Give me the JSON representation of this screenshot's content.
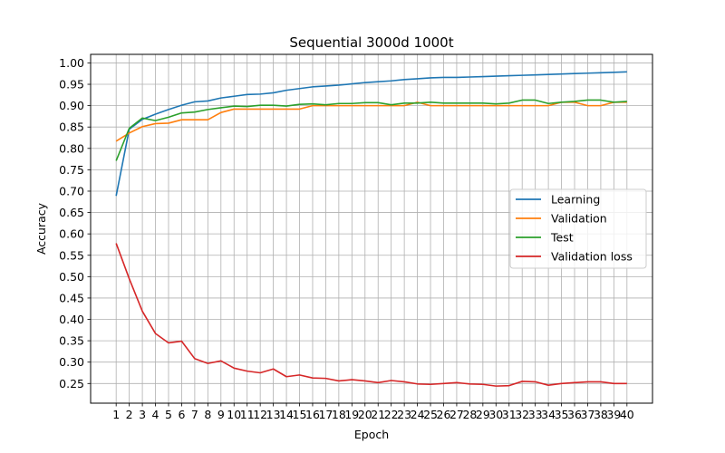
{
  "chart_data": {
    "type": "line",
    "title": "Sequential 3000d 1000t",
    "xlabel": "Epoch",
    "ylabel": "Accuracy",
    "x": [
      1,
      2,
      3,
      4,
      5,
      6,
      7,
      8,
      9,
      10,
      11,
      12,
      13,
      14,
      15,
      16,
      17,
      18,
      19,
      20,
      21,
      22,
      23,
      24,
      25,
      26,
      27,
      28,
      29,
      30,
      31,
      32,
      33,
      34,
      35,
      36,
      37,
      38,
      39,
      40
    ],
    "xticks": [
      "1",
      "2",
      "3",
      "4",
      "5",
      "6",
      "7",
      "8",
      "9",
      "10",
      "11",
      "12",
      "13",
      "14",
      "15",
      "16",
      "17",
      "18",
      "19",
      "20",
      "21",
      "22",
      "23",
      "24",
      "25",
      "26",
      "27",
      "28",
      "29",
      "30",
      "31",
      "32",
      "33",
      "34",
      "35",
      "36",
      "37",
      "38",
      "39",
      "40"
    ],
    "yticks": [
      "0.25",
      "0.30",
      "0.35",
      "0.40",
      "0.45",
      "0.50",
      "0.55",
      "0.60",
      "0.65",
      "0.70",
      "0.75",
      "0.80",
      "0.85",
      "0.90",
      "0.95",
      "1.00"
    ],
    "xlim": [
      -0.95,
      41.95
    ],
    "ylim": [
      0.204,
      1.02
    ],
    "grid": true,
    "legend_position": "center-right",
    "series": [
      {
        "name": "Learning",
        "color": "#1f77b4",
        "values": [
          0.689,
          0.845,
          0.868,
          0.88,
          0.891,
          0.901,
          0.909,
          0.911,
          0.918,
          0.922,
          0.926,
          0.927,
          0.93,
          0.936,
          0.94,
          0.944,
          0.946,
          0.948,
          0.951,
          0.954,
          0.956,
          0.958,
          0.961,
          0.963,
          0.965,
          0.966,
          0.966,
          0.967,
          0.968,
          0.969,
          0.97,
          0.971,
          0.972,
          0.973,
          0.974,
          0.975,
          0.976,
          0.977,
          0.978,
          0.979
        ]
      },
      {
        "name": "Validation",
        "color": "#ff7f0e",
        "values": [
          0.817,
          0.836,
          0.851,
          0.858,
          0.859,
          0.867,
          0.867,
          0.867,
          0.884,
          0.892,
          0.892,
          0.892,
          0.892,
          0.892,
          0.892,
          0.9,
          0.9,
          0.9,
          0.9,
          0.9,
          0.9,
          0.9,
          0.9,
          0.908,
          0.9,
          0.9,
          0.9,
          0.9,
          0.9,
          0.9,
          0.9,
          0.9,
          0.9,
          0.9,
          0.908,
          0.908,
          0.9,
          0.9,
          0.908,
          0.908
        ]
      },
      {
        "name": "Test",
        "color": "#2ca02c",
        "values": [
          0.771,
          0.847,
          0.871,
          0.865,
          0.873,
          0.883,
          0.885,
          0.891,
          0.895,
          0.899,
          0.898,
          0.901,
          0.901,
          0.899,
          0.903,
          0.904,
          0.902,
          0.905,
          0.905,
          0.907,
          0.907,
          0.902,
          0.906,
          0.906,
          0.908,
          0.906,
          0.906,
          0.906,
          0.906,
          0.904,
          0.906,
          0.913,
          0.913,
          0.905,
          0.908,
          0.91,
          0.913,
          0.913,
          0.908,
          0.91
        ]
      },
      {
        "name": "Validation loss",
        "color": "#d62728",
        "values": [
          0.578,
          0.495,
          0.419,
          0.367,
          0.345,
          0.349,
          0.308,
          0.297,
          0.303,
          0.286,
          0.279,
          0.275,
          0.284,
          0.266,
          0.27,
          0.263,
          0.262,
          0.256,
          0.259,
          0.256,
          0.252,
          0.257,
          0.254,
          0.249,
          0.248,
          0.25,
          0.252,
          0.249,
          0.248,
          0.244,
          0.245,
          0.255,
          0.254,
          0.246,
          0.25,
          0.252,
          0.254,
          0.254,
          0.25,
          0.25
        ]
      }
    ]
  }
}
